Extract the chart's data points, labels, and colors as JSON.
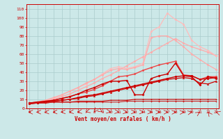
{
  "xlabel": "Vent moyen/en rafales ( km/h )",
  "background_color": "#cce8e8",
  "grid_color": "#aacccc",
  "x_ticks": [
    0,
    1,
    2,
    3,
    4,
    5,
    6,
    7,
    8,
    9,
    10,
    11,
    12,
    13,
    14,
    15,
    16,
    17,
    18,
    19,
    20,
    21,
    22,
    23
  ],
  "ylim": [
    0,
    115
  ],
  "xlim": [
    -0.3,
    23.3
  ],
  "yticks": [
    0,
    10,
    20,
    30,
    40,
    50,
    60,
    70,
    80,
    90,
    100,
    110
  ],
  "lines": [
    {
      "x": [
        0,
        1,
        2,
        3,
        4,
        5,
        6,
        7,
        8,
        9,
        10,
        11,
        12,
        13,
        14,
        15,
        16,
        17,
        18,
        19,
        20,
        21,
        22,
        23
      ],
      "y": [
        5,
        6,
        8,
        10,
        13,
        16,
        20,
        24,
        28,
        33,
        37,
        42,
        47,
        52,
        57,
        62,
        67,
        72,
        77,
        72,
        68,
        65,
        62,
        58
      ],
      "color": "#ffaaaa",
      "lw": 0.9,
      "marker": "o",
      "ms": 1.5
    },
    {
      "x": [
        0,
        1,
        2,
        3,
        4,
        5,
        6,
        7,
        8,
        9,
        10,
        11,
        12,
        13,
        14,
        15,
        16,
        17,
        18,
        19,
        20,
        21,
        22,
        23
      ],
      "y": [
        6,
        7,
        9,
        11,
        15,
        19,
        23,
        27,
        32,
        38,
        44,
        46,
        44,
        46,
        50,
        85,
        90,
        105,
        98,
        93,
        75,
        68,
        64,
        58
      ],
      "color": "#ffbbbb",
      "lw": 0.9,
      "marker": "o",
      "ms": 1.5
    },
    {
      "x": [
        0,
        1,
        2,
        3,
        4,
        5,
        6,
        7,
        8,
        9,
        10,
        11,
        12,
        13,
        14,
        15,
        16,
        17,
        18,
        19,
        20,
        21,
        22,
        23
      ],
      "y": [
        6,
        7,
        9,
        12,
        15,
        19,
        23,
        28,
        32,
        37,
        42,
        44,
        43,
        45,
        48,
        78,
        80,
        80,
        75,
        68,
        60,
        54,
        48,
        43
      ],
      "color": "#ffaaaa",
      "lw": 0.9,
      "marker": "o",
      "ms": 1.5
    },
    {
      "x": [
        0,
        1,
        2,
        3,
        4,
        5,
        6,
        7,
        8,
        9,
        10,
        11,
        12,
        13,
        14,
        15,
        16,
        17,
        18,
        19,
        20,
        21,
        22,
        23
      ],
      "y": [
        6,
        7,
        8,
        9,
        11,
        13,
        16,
        18,
        21,
        25,
        30,
        35,
        36,
        38,
        42,
        45,
        48,
        50,
        52,
        37,
        36,
        32,
        35,
        35
      ],
      "color": "#ee4444",
      "lw": 1.0,
      "marker": "o",
      "ms": 1.5
    },
    {
      "x": [
        0,
        1,
        2,
        3,
        4,
        5,
        6,
        7,
        8,
        9,
        10,
        11,
        12,
        13,
        14,
        15,
        16,
        17,
        18,
        19,
        20,
        21,
        22,
        23
      ],
      "y": [
        6,
        7,
        8,
        9,
        11,
        13,
        16,
        20,
        23,
        27,
        30,
        30,
        31,
        15,
        15,
        33,
        36,
        38,
        50,
        36,
        35,
        26,
        35,
        33
      ],
      "color": "#cc0000",
      "lw": 1.0,
      "marker": "D",
      "ms": 1.5
    },
    {
      "x": [
        0,
        1,
        2,
        3,
        4,
        5,
        6,
        7,
        8,
        9,
        10,
        11,
        12,
        13,
        14,
        15,
        16,
        17,
        18,
        19,
        20,
        21,
        22,
        23
      ],
      "y": [
        6,
        6,
        7,
        8,
        9,
        10,
        12,
        14,
        15,
        17,
        19,
        21,
        23,
        25,
        27,
        29,
        31,
        33,
        35,
        36,
        36,
        32,
        33,
        34
      ],
      "color": "#cc0000",
      "lw": 1.0,
      "marker": "s",
      "ms": 1.5
    },
    {
      "x": [
        0,
        1,
        2,
        3,
        4,
        5,
        6,
        7,
        8,
        9,
        10,
        11,
        12,
        13,
        14,
        15,
        16,
        17,
        18,
        19,
        20,
        21,
        22,
        23
      ],
      "y": [
        5,
        6,
        7,
        8,
        9,
        10,
        11,
        13,
        14,
        16,
        18,
        20,
        22,
        24,
        26,
        28,
        30,
        32,
        33,
        34,
        33,
        28,
        27,
        30
      ],
      "color": "#cc0000",
      "lw": 0.9,
      "marker": "^",
      "ms": 1.5
    },
    {
      "x": [
        0,
        1,
        2,
        3,
        4,
        5,
        6,
        7,
        8,
        9,
        10,
        11,
        12,
        13,
        14,
        15,
        16,
        17,
        18,
        19,
        20,
        21,
        22,
        23
      ],
      "y": [
        5,
        6,
        6,
        7,
        7,
        7,
        8,
        8,
        8,
        8,
        9,
        9,
        9,
        10,
        10,
        10,
        10,
        10,
        10,
        10,
        10,
        10,
        10,
        10
      ],
      "color": "#cc0000",
      "lw": 0.8,
      "marker": ".",
      "ms": 1.5
    },
    {
      "x": [
        0,
        1,
        2,
        3,
        4,
        5,
        6,
        7,
        8,
        9,
        10,
        11,
        12,
        13,
        14,
        15,
        16,
        17,
        18,
        19,
        20,
        21,
        22,
        23
      ],
      "y": [
        6,
        6,
        6,
        7,
        7,
        7,
        7,
        7,
        7,
        7,
        7,
        7,
        8,
        8,
        8,
        8,
        8,
        8,
        8,
        8,
        8,
        8,
        8,
        8
      ],
      "color": "#cc2222",
      "lw": 0.8,
      "marker": "+",
      "ms": 2
    }
  ],
  "wind_arrows": {
    "angles_deg": [
      285,
      275,
      265,
      255,
      245,
      235,
      220,
      200,
      185,
      170,
      150,
      135,
      120,
      110,
      100,
      90,
      80,
      70,
      60,
      50,
      30,
      10,
      355,
      340
    ],
    "color": "#cc0000",
    "fontsize": 4.5
  }
}
